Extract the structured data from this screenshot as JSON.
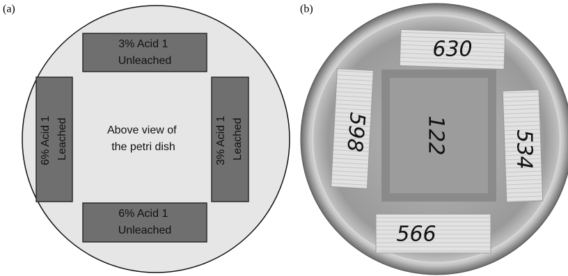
{
  "panel_a": {
    "label": "(a)",
    "samples": [
      {
        "lines": [
          "3% Acid 1",
          "Unleached"
        ]
      },
      {
        "lines": [
          "6% Acid 1",
          "Leached"
        ]
      },
      {
        "lines": [
          "3% Acid 1",
          "Leached"
        ]
      },
      {
        "lines": [
          "6% Acid 1",
          "Unleached"
        ]
      }
    ],
    "center_lines": [
      "Above view of",
      "the petri dish"
    ]
  },
  "panel_b": {
    "label": "(b)",
    "handwriting": {
      "top": "630",
      "left": "598",
      "center": "122",
      "right": "534",
      "bottom": "566"
    }
  }
}
